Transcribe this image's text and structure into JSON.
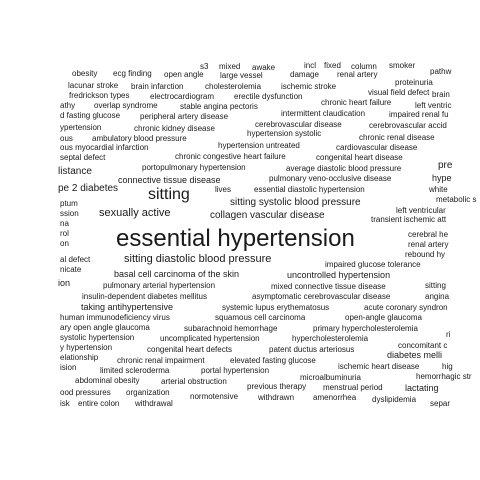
{
  "word_cloud": {
    "words": [
      {
        "text": "s3",
        "weight": 8
      },
      {
        "text": "mixed",
        "weight": 8
      },
      {
        "text": "awake",
        "weight": 8
      },
      {
        "text": "incl",
        "weight": 8
      },
      {
        "text": "fixed",
        "weight": 8
      },
      {
        "text": "column",
        "weight": 8
      },
      {
        "text": "smoker",
        "weight": 8
      },
      {
        "text": "pathw",
        "weight": 8
      },
      {
        "text": "obesity",
        "weight": 8
      },
      {
        "text": "ecg finding",
        "weight": 8
      },
      {
        "text": "open angle",
        "weight": 8
      },
      {
        "text": "large vessel",
        "weight": 8
      },
      {
        "text": "damage",
        "weight": 8
      },
      {
        "text": "renal artery",
        "weight": 8
      },
      {
        "text": "proteinuria",
        "weight": 8
      },
      {
        "text": "lacunar stroke",
        "weight": 8
      },
      {
        "text": "brain infarction",
        "weight": 8
      },
      {
        "text": "cholesterolemia",
        "weight": 8
      },
      {
        "text": "ischemic stroke",
        "weight": 8
      },
      {
        "text": "visual field defect",
        "weight": 8
      },
      {
        "text": "brain",
        "weight": 8
      },
      {
        "text": "fredrickson types",
        "weight": 8
      },
      {
        "text": "electrocardiogram",
        "weight": 8
      },
      {
        "text": "erectile dysfunction",
        "weight": 8
      },
      {
        "text": "chronic heart failure",
        "weight": 8
      },
      {
        "text": "athy",
        "weight": 8
      },
      {
        "text": "overlap syndrome",
        "weight": 8
      },
      {
        "text": "stable angina pectoris",
        "weight": 8
      },
      {
        "text": "left ventric",
        "weight": 8
      },
      {
        "text": "d fasting glucose",
        "weight": 8
      },
      {
        "text": "peripheral artery disease",
        "weight": 8
      },
      {
        "text": "intermittent claudication",
        "weight": 8
      },
      {
        "text": "impaired renal fu",
        "weight": 8
      },
      {
        "text": "ypertension",
        "weight": 8
      },
      {
        "text": "chronic kidney disease",
        "weight": 8
      },
      {
        "text": "cerebrovascular disease",
        "weight": 8
      },
      {
        "text": "cerebrovascular accid",
        "weight": 8
      },
      {
        "text": "ous",
        "weight": 8
      },
      {
        "text": "ambulatory blood pressure",
        "weight": 8
      },
      {
        "text": "hypertension systolic",
        "weight": 8
      },
      {
        "text": "chronic renal disease",
        "weight": 8
      },
      {
        "text": "ous myocardial infarction",
        "weight": 8
      },
      {
        "text": "hypertension untreated",
        "weight": 8
      },
      {
        "text": "cardiovascular disease",
        "weight": 8
      },
      {
        "text": "septal defect",
        "weight": 8
      },
      {
        "text": "chronic congestive heart failure",
        "weight": 8
      },
      {
        "text": "congenital heart disease",
        "weight": 8
      },
      {
        "text": "portopulmonary hypertension",
        "weight": 8
      },
      {
        "text": "average diastolic blood pressure",
        "weight": 8
      },
      {
        "text": "pre",
        "weight": 10
      },
      {
        "text": "listance",
        "weight": 10
      },
      {
        "text": "pulmonary veno-occlusive disease",
        "weight": 8
      },
      {
        "text": "connective tissue disease",
        "weight": 9
      },
      {
        "text": "hype",
        "weight": 9
      },
      {
        "text": "pe 2 diabetes",
        "weight": 10
      },
      {
        "text": "lives",
        "weight": 8
      },
      {
        "text": "essential diastolic hypertension",
        "weight": 8
      },
      {
        "text": "white",
        "weight": 8
      },
      {
        "text": "sitting",
        "weight": 16
      },
      {
        "text": "metabolic s",
        "weight": 8
      },
      {
        "text": "ptum",
        "weight": 8
      },
      {
        "text": "sitting systolic blood pressure",
        "weight": 10
      },
      {
        "text": "ssion",
        "weight": 8
      },
      {
        "text": "sexually active",
        "weight": 11
      },
      {
        "text": "left ventricular",
        "weight": 8
      },
      {
        "text": "collagen vascular disease",
        "weight": 10
      },
      {
        "text": "transient ischemic att",
        "weight": 8
      },
      {
        "text": "na",
        "weight": 8
      },
      {
        "text": "rol",
        "weight": 8
      },
      {
        "text": "cerebral he",
        "weight": 8
      },
      {
        "text": "essential hypertension",
        "weight": 24
      },
      {
        "text": "on",
        "weight": 8
      },
      {
        "text": "renal artery",
        "weight": 8
      },
      {
        "text": "rebound hy",
        "weight": 8
      },
      {
        "text": "al defect",
        "weight": 8
      },
      {
        "text": "sitting diastolic blood pressure",
        "weight": 11
      },
      {
        "text": "nicate",
        "weight": 8
      },
      {
        "text": "impaired glucose tolerance",
        "weight": 8
      },
      {
        "text": "basal cell carcinoma of the skin",
        "weight": 9
      },
      {
        "text": "uncontrolled hypertension",
        "weight": 9
      },
      {
        "text": "ion",
        "weight": 9
      },
      {
        "text": "pulmonary arterial hypertension",
        "weight": 8
      },
      {
        "text": "mixed connective tissue disease",
        "weight": 8
      },
      {
        "text": "sitting",
        "weight": 8
      },
      {
        "text": "insulin-dependent diabetes mellitus",
        "weight": 8
      },
      {
        "text": "asymptomatic cerebrovascular disease",
        "weight": 8
      },
      {
        "text": "angina",
        "weight": 8
      },
      {
        "text": "taking antihypertensive",
        "weight": 9
      },
      {
        "text": "systemic lupus erythematosus",
        "weight": 8
      },
      {
        "text": "acute coronary syndron",
        "weight": 8
      },
      {
        "text": "human immunodeficiency virus",
        "weight": 8
      },
      {
        "text": "squamous cell carcinoma",
        "weight": 8
      },
      {
        "text": "open-angle glaucoma",
        "weight": 8
      },
      {
        "text": "ary open angle glaucoma",
        "weight": 8
      },
      {
        "text": "subarachnoid hemorrhage",
        "weight": 8
      },
      {
        "text": "primary hypercholesterolemia",
        "weight": 8
      },
      {
        "text": "ri",
        "weight": 8
      },
      {
        "text": "systolic hypertension",
        "weight": 8
      },
      {
        "text": "uncomplicated hypertension",
        "weight": 8
      },
      {
        "text": "hypercholesterolemia",
        "weight": 8
      },
      {
        "text": "concomitant c",
        "weight": 8
      },
      {
        "text": "y hypertension",
        "weight": 8
      },
      {
        "text": "congenital heart defects",
        "weight": 8
      },
      {
        "text": "patent ductus arteriosus",
        "weight": 8
      },
      {
        "text": "diabetes melli",
        "weight": 9
      },
      {
        "text": "elationship",
        "weight": 8
      },
      {
        "text": "chronic renal impairment",
        "weight": 8
      },
      {
        "text": "elevated fasting glucose",
        "weight": 8
      },
      {
        "text": "ision",
        "weight": 8
      },
      {
        "text": "limited scleroderma",
        "weight": 8
      },
      {
        "text": "portal hypertension",
        "weight": 8
      },
      {
        "text": "ischemic heart disease",
        "weight": 8
      },
      {
        "text": "hig",
        "weight": 8
      },
      {
        "text": "microalbuminuria",
        "weight": 8
      },
      {
        "text": "hemorrhagic str",
        "weight": 8
      },
      {
        "text": "abdominal obesity",
        "weight": 8
      },
      {
        "text": "arterial obstruction",
        "weight": 8
      },
      {
        "text": "previous therapy",
        "weight": 8
      },
      {
        "text": "menstrual period",
        "weight": 8
      },
      {
        "text": "lactating",
        "weight": 9
      },
      {
        "text": "ood pressures",
        "weight": 8
      },
      {
        "text": "organization",
        "weight": 8
      },
      {
        "text": "normotensive",
        "weight": 8
      },
      {
        "text": "withdrawn",
        "weight": 8
      },
      {
        "text": "amenorrhea",
        "weight": 8
      },
      {
        "text": "dyslipidemia",
        "weight": 8
      },
      {
        "text": "isk",
        "weight": 8
      },
      {
        "text": "entire colon",
        "weight": 8
      },
      {
        "text": "withdrawal",
        "weight": 8
      },
      {
        "text": "separ",
        "weight": 8
      }
    ]
  }
}
